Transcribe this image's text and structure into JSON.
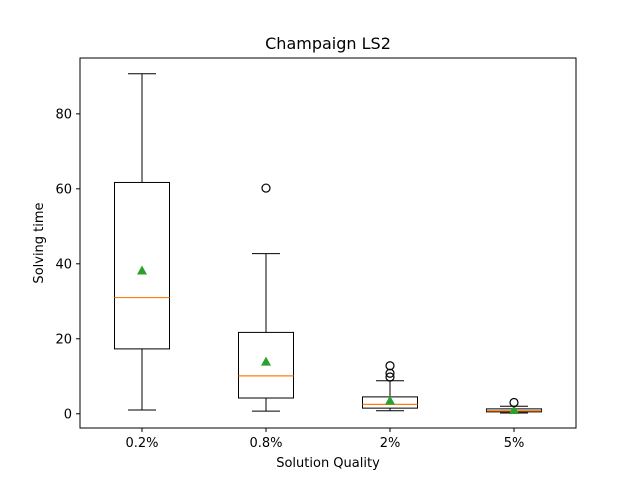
{
  "chart_data": {
    "type": "box",
    "title": "Champaign LS2",
    "xlabel": "Solution Quality",
    "ylabel": "Solving time",
    "ylim": [
      -3.8,
      94.9
    ],
    "yticks": [
      0,
      20,
      40,
      60,
      80
    ],
    "categories": [
      "0.2%",
      "0.8%",
      "2%",
      "5%"
    ],
    "grid": false,
    "boxes": [
      {
        "category": "0.2%",
        "whisker_low": 1.0,
        "q1": 17.3,
        "median": 31.0,
        "q3": 61.7,
        "whisker_high": 90.7,
        "mean": 38.2,
        "outliers": []
      },
      {
        "category": "0.8%",
        "whisker_low": 0.7,
        "q1": 4.2,
        "median": 10.1,
        "q3": 21.7,
        "whisker_high": 42.7,
        "mean": 13.9,
        "outliers": [
          60.2
        ]
      },
      {
        "category": "2%",
        "whisker_low": 0.8,
        "q1": 1.5,
        "median": 2.5,
        "q3": 4.5,
        "whisker_high": 8.8,
        "mean": 3.5,
        "outliers": [
          9.8,
          10.8,
          12.8
        ]
      },
      {
        "category": "5%",
        "whisker_low": 0.2,
        "q1": 0.5,
        "median": 0.8,
        "q3": 1.3,
        "whisker_high": 2.0,
        "mean": 1.0,
        "outliers": [
          3.0
        ]
      }
    ],
    "colors": {
      "box": "#000000",
      "median": "#ff7f0e",
      "mean": "#2ca02c",
      "outlier": "#000000"
    }
  }
}
